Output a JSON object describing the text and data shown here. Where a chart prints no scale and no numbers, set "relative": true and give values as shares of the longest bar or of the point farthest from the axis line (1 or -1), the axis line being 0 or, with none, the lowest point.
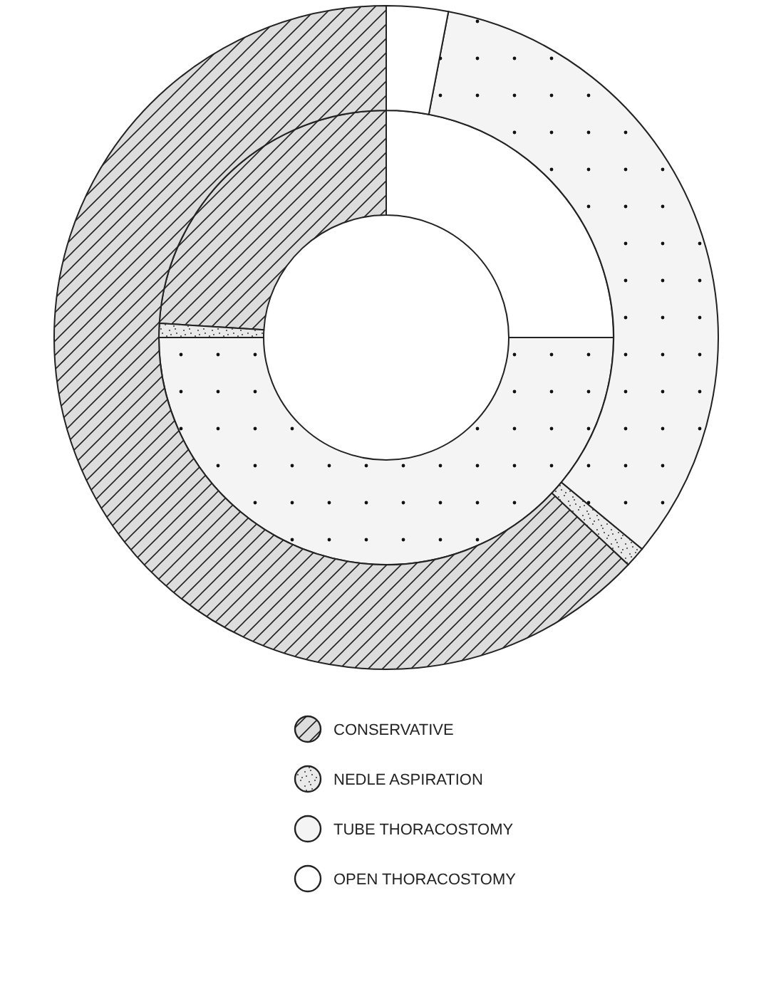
{
  "chart_data": {
    "type": "donut",
    "relative": true,
    "categories": [
      "CONSERVATIVE",
      "NEDLE ASPIRATION",
      "TUBE THORACOSTOMY",
      "OPEN THORACOSTOMY"
    ],
    "colors": [
      "#dddddd",
      "#eaeaea",
      "#f4f4f4",
      "#ffffff"
    ],
    "series": [
      {
        "values": [
          24,
          1,
          50,
          25
        ]
      },
      {
        "values": [
          63,
          1,
          33,
          3
        ]
      }
    ],
    "legend": "bottom"
  }
}
